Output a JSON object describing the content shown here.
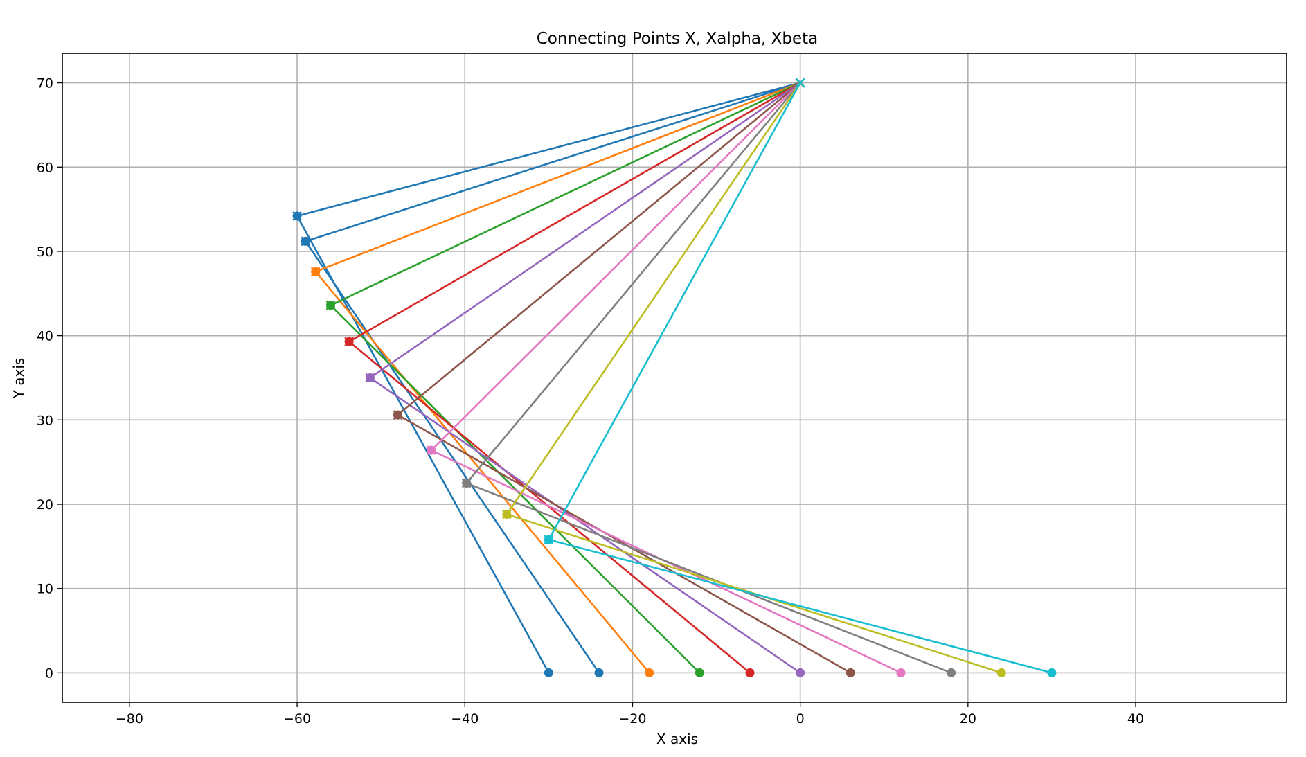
{
  "chart_data": {
    "type": "line",
    "title": "Connecting Points X, Xalpha, Xbeta",
    "xlabel": "X axis",
    "ylabel": "Y axis",
    "xlim": [
      -88,
      58
    ],
    "ylim": [
      -3.5,
      73.5
    ],
    "grid": true,
    "legend": "none",
    "x_ticks": [
      -80,
      -60,
      -40,
      -20,
      0,
      20,
      40
    ],
    "x_tick_labels": [
      "−80",
      "−60",
      "−40",
      "−20",
      "0",
      "20",
      "40"
    ],
    "y_ticks": [
      0,
      10,
      20,
      30,
      40,
      50,
      60,
      70
    ],
    "y_tick_labels": [
      "0",
      "10",
      "20",
      "30",
      "40",
      "50",
      "60",
      "70"
    ],
    "common_point": {
      "x": 0,
      "y": 70,
      "marker": "x"
    },
    "series": [
      {
        "color": "#1f77b4",
        "points": [
          [
            -30,
            0
          ],
          [
            -60,
            54.2
          ],
          [
            0,
            70
          ]
        ]
      },
      {
        "color": "#1f77b4",
        "points": [
          [
            -24,
            0
          ],
          [
            -59,
            51.2
          ],
          [
            0,
            70
          ]
        ]
      },
      {
        "color": "#ff7f0e",
        "points": [
          [
            -18,
            0
          ],
          [
            -57.8,
            47.6
          ],
          [
            0,
            70
          ]
        ]
      },
      {
        "color": "#2ca02c",
        "points": [
          [
            -12,
            0
          ],
          [
            -56,
            43.6
          ],
          [
            0,
            70
          ]
        ]
      },
      {
        "color": "#d62728",
        "points": [
          [
            -6,
            0
          ],
          [
            -53.8,
            39.3
          ],
          [
            0,
            70
          ]
        ]
      },
      {
        "color": "#9467bd",
        "points": [
          [
            0,
            0
          ],
          [
            -51.3,
            35
          ],
          [
            0,
            70
          ]
        ]
      },
      {
        "color": "#8c564b",
        "points": [
          [
            6,
            0
          ],
          [
            -48,
            30.6
          ],
          [
            0,
            70
          ]
        ]
      },
      {
        "color": "#e377c2",
        "points": [
          [
            12,
            0
          ],
          [
            -44,
            26.4
          ],
          [
            0,
            70
          ]
        ]
      },
      {
        "color": "#7f7f7f",
        "points": [
          [
            18,
            0
          ],
          [
            -39.8,
            22.5
          ],
          [
            0,
            70
          ]
        ]
      },
      {
        "color": "#bcbd22",
        "points": [
          [
            24,
            0
          ],
          [
            -35,
            18.8
          ],
          [
            0,
            70
          ]
        ]
      },
      {
        "color": "#17becf",
        "points": [
          [
            30,
            0
          ],
          [
            -30,
            15.8
          ],
          [
            0,
            70
          ]
        ]
      }
    ]
  }
}
